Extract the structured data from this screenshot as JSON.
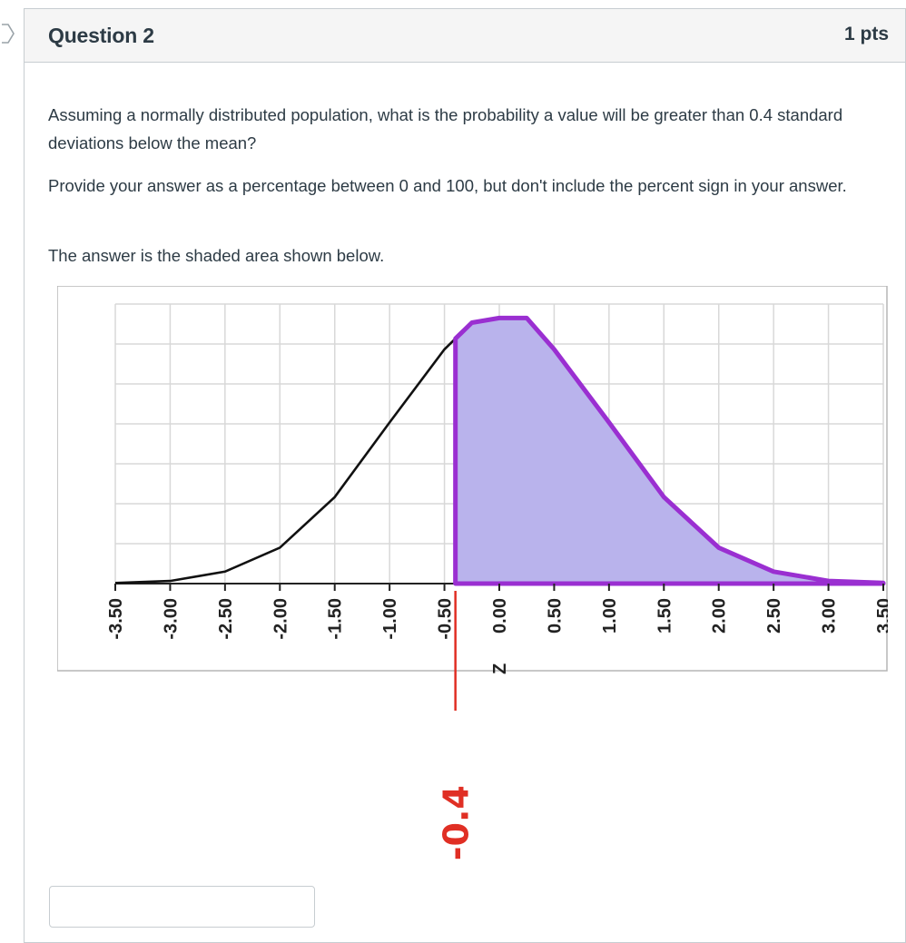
{
  "question": {
    "title": "Question 2",
    "points": "1 pts",
    "paragraphs": [
      "Assuming a normally distributed population, what is the probability a value will be greater than 0.4 standard deviations below the mean?",
      "Provide your answer as a percentage between 0 and 100, but don't include the percent sign in your answer.",
      "The answer is the shaded area shown below."
    ]
  },
  "answer": {
    "value": ""
  },
  "icons": {
    "nav": "chevron-right-icon"
  },
  "colors": {
    "shade_fill": "#b9b3ec",
    "shade_stroke": "#9a2fd1",
    "curve": "#111111",
    "annotation": "#e02f24",
    "grid": "#d8d8d8"
  },
  "chart_data": {
    "type": "area",
    "x_ticks": [
      "-3.50",
      "-3.00",
      "-2.50",
      "-2.00",
      "-1.50",
      "-1.00",
      "-0.50",
      "0.00",
      "0.50",
      "1.00",
      "1.50",
      "2.00",
      "2.50",
      "3.00",
      "3.50"
    ],
    "xlim": [
      -3.5,
      3.5
    ],
    "ylim": [
      0,
      0.42
    ],
    "grid": true,
    "curve": {
      "x": [
        -3.5,
        -3.0,
        -2.5,
        -2.0,
        -1.5,
        -1.0,
        -0.5,
        -0.4,
        -0.25,
        0.0,
        0.25,
        0.5,
        1.0,
        1.5,
        2.0,
        2.5,
        3.0,
        3.5
      ],
      "y": [
        0.001,
        0.004,
        0.018,
        0.054,
        0.13,
        0.242,
        0.352,
        0.368,
        0.392,
        0.399,
        0.399,
        0.352,
        0.242,
        0.13,
        0.054,
        0.018,
        0.004,
        0.001
      ]
    },
    "shaded_from": -0.4,
    "annotation": "Z= -0.4",
    "axis_label_extra": "Z"
  }
}
